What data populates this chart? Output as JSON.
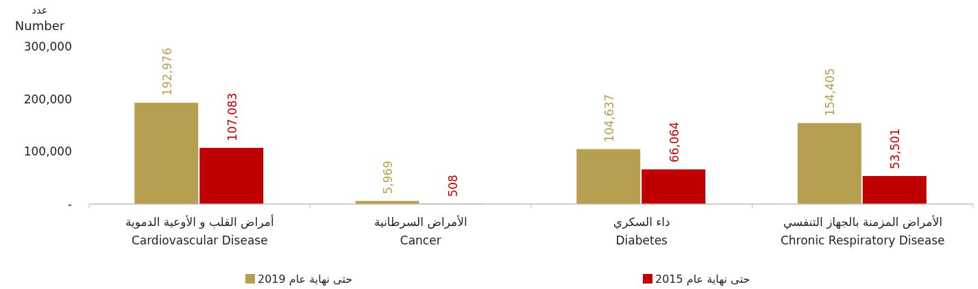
{
  "chart_data": {
    "type": "bar",
    "ylabel": "عدد\nNumber",
    "categories": [
      "أمراض القلب و الأوعية الدموية\nCardiovascular Disease",
      "الأمراض السرطانية\nCancer",
      "داء السكري\nDiabetes",
      "الأمراض المزمنة بالجهاز التنفسي\nChronic Respiratory Disease"
    ],
    "series": [
      {
        "name": "حتى نهاية عام 2019",
        "color": "#b79f52",
        "values": [
          192976,
          5969,
          104637,
          154405
        ],
        "value_labels": [
          "192,976",
          "5,969",
          "104,637",
          "154,405"
        ]
      },
      {
        "name": "حتى نهاية عام 2015",
        "color": "#c00000",
        "values": [
          107083,
          508,
          66064,
          53501
        ],
        "value_labels": [
          "107,083",
          "508",
          "66,064",
          "53,501"
        ]
      }
    ],
    "ylim": [
      0,
      300000
    ],
    "yticks": [
      {
        "value": 0,
        "label": "-"
      },
      {
        "value": 100000,
        "label": "100,000"
      },
      {
        "value": 200000,
        "label": "200,000"
      },
      {
        "value": 300000,
        "label": "300,000"
      }
    ],
    "legend": "bottom",
    "grid": false
  }
}
